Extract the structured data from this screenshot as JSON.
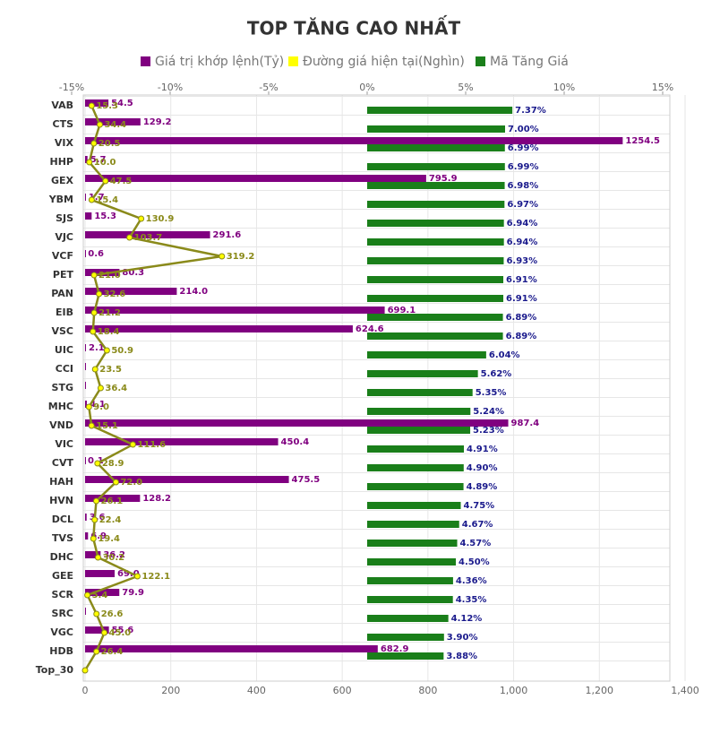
{
  "chart_data": {
    "type": "bar",
    "title": "TOP TĂNG CAO NHẤT",
    "categories": [
      "VAB",
      "CTS",
      "VIX",
      "HHP",
      "GEX",
      "YBM",
      "SJS",
      "VJC",
      "VCF",
      "PET",
      "PAN",
      "EIB",
      "VSC",
      "UIC",
      "CCI",
      "STG",
      "MHC",
      "VND",
      "VIC",
      "CVT",
      "HAH",
      "HVN",
      "DCL",
      "TVS",
      "DHC",
      "GEE",
      "SCR",
      "SRC",
      "VGC",
      "HDB",
      "Top_30"
    ],
    "series": [
      {
        "name": "Giá trị khớp lệnh(Tỷ)",
        "type": "bar",
        "axis": "x",
        "color": "#800080",
        "values": [
          54.5,
          129.2,
          1254.5,
          5.7,
          795.9,
          1.7,
          15.3,
          291.6,
          0.6,
          80.3,
          214.0,
          699.1,
          624.6,
          2.1,
          1.0,
          1.0,
          4.1,
          987.4,
          450.4,
          0.1,
          475.5,
          128.2,
          3.6,
          6.9,
          36.2,
          69.0,
          79.9,
          1.0,
          55.6,
          682.9,
          null
        ],
        "value_labels": [
          "54.5",
          "129.2",
          "1254.5",
          "5.7",
          "795.9",
          "1.7",
          "15.3",
          "291.6",
          "0.6",
          "80.3",
          "214.0",
          "699.1",
          "624.6",
          "2.1",
          null,
          null,
          "4.1",
          "987.4",
          "450.4",
          "0.1",
          "475.5",
          "128.2",
          "3.6",
          "6.9",
          "36.2",
          "69.0",
          "79.9",
          null,
          "55.6",
          "682.9",
          null
        ]
      },
      {
        "name": "Đường giá hiện tại(Nghìn)",
        "type": "line",
        "axis": "x",
        "color": "#ffff00",
        "line_color": "#8a8a1a",
        "values": [
          15.3,
          34.4,
          20.5,
          10.0,
          47.5,
          15.4,
          130.9,
          103.7,
          319.2,
          21.0,
          32.6,
          21.2,
          18.4,
          50.9,
          23.5,
          36.4,
          9.0,
          15.1,
          111.6,
          28.9,
          72.0,
          26.1,
          22.4,
          19.4,
          30.2,
          122.1,
          5.4,
          26.6,
          45.0,
          26.4,
          0
        ],
        "value_labels": [
          "15.3",
          "34.4",
          "20.5",
          "10.0",
          "47.5",
          "15.4",
          "130.9",
          "103.7",
          "319.2",
          "21.0",
          "32.6",
          "21.2",
          "18.4",
          "50.9",
          "23.5",
          "36.4",
          "9.0",
          "15.1",
          "111.6",
          "28.9",
          "72.0",
          "26.1",
          "22.4",
          "19.4",
          "30.2",
          "122.1",
          "5.4",
          "26.6",
          "45.0",
          "26.4",
          null
        ]
      },
      {
        "name": "Mã Tăng Giá",
        "type": "bar",
        "axis": "x2",
        "color": "#1a7f1a",
        "values": [
          7.37,
          7.0,
          6.99,
          6.99,
          6.98,
          6.97,
          6.94,
          6.94,
          6.93,
          6.91,
          6.91,
          6.89,
          6.89,
          6.04,
          5.62,
          5.35,
          5.24,
          5.23,
          4.91,
          4.9,
          4.89,
          4.75,
          4.67,
          4.57,
          4.5,
          4.36,
          4.35,
          4.12,
          3.9,
          3.88,
          null
        ],
        "value_labels": [
          "7.37%",
          "7.00%",
          "6.99%",
          "6.99%",
          "6.98%",
          "6.97%",
          "6.94%",
          "6.94%",
          "6.93%",
          "6.91%",
          "6.91%",
          "6.89%",
          "6.89%",
          "6.04%",
          "5.62%",
          "5.35%",
          "5.24%",
          "5.23%",
          "4.91%",
          "4.90%",
          "4.89%",
          "4.75%",
          "4.67%",
          "4.57%",
          "4.50%",
          "4.36%",
          "4.35%",
          "4.12%",
          "3.90%",
          "3.88%",
          null
        ]
      }
    ],
    "xlim": [
      0,
      1400
    ],
    "xticks": [
      0,
      200,
      400,
      600,
      800,
      {
        "value": 1000,
        "label": "1,000"
      },
      {
        "value": 1200,
        "label": "1,200"
      },
      {
        "value": 1400,
        "label": "1,400"
      }
    ],
    "x2lim": [
      -15,
      15
    ],
    "x2ticks": [
      {
        "value": -15,
        "label": "-15%"
      },
      {
        "value": -10,
        "label": "-10%"
      },
      {
        "value": -5,
        "label": "-5%"
      },
      {
        "value": 0,
        "label": "0%"
      },
      {
        "value": 5,
        "label": "5%"
      },
      {
        "value": 10,
        "label": "10%"
      },
      {
        "value": 15,
        "label": "15%"
      }
    ],
    "grid": true
  }
}
